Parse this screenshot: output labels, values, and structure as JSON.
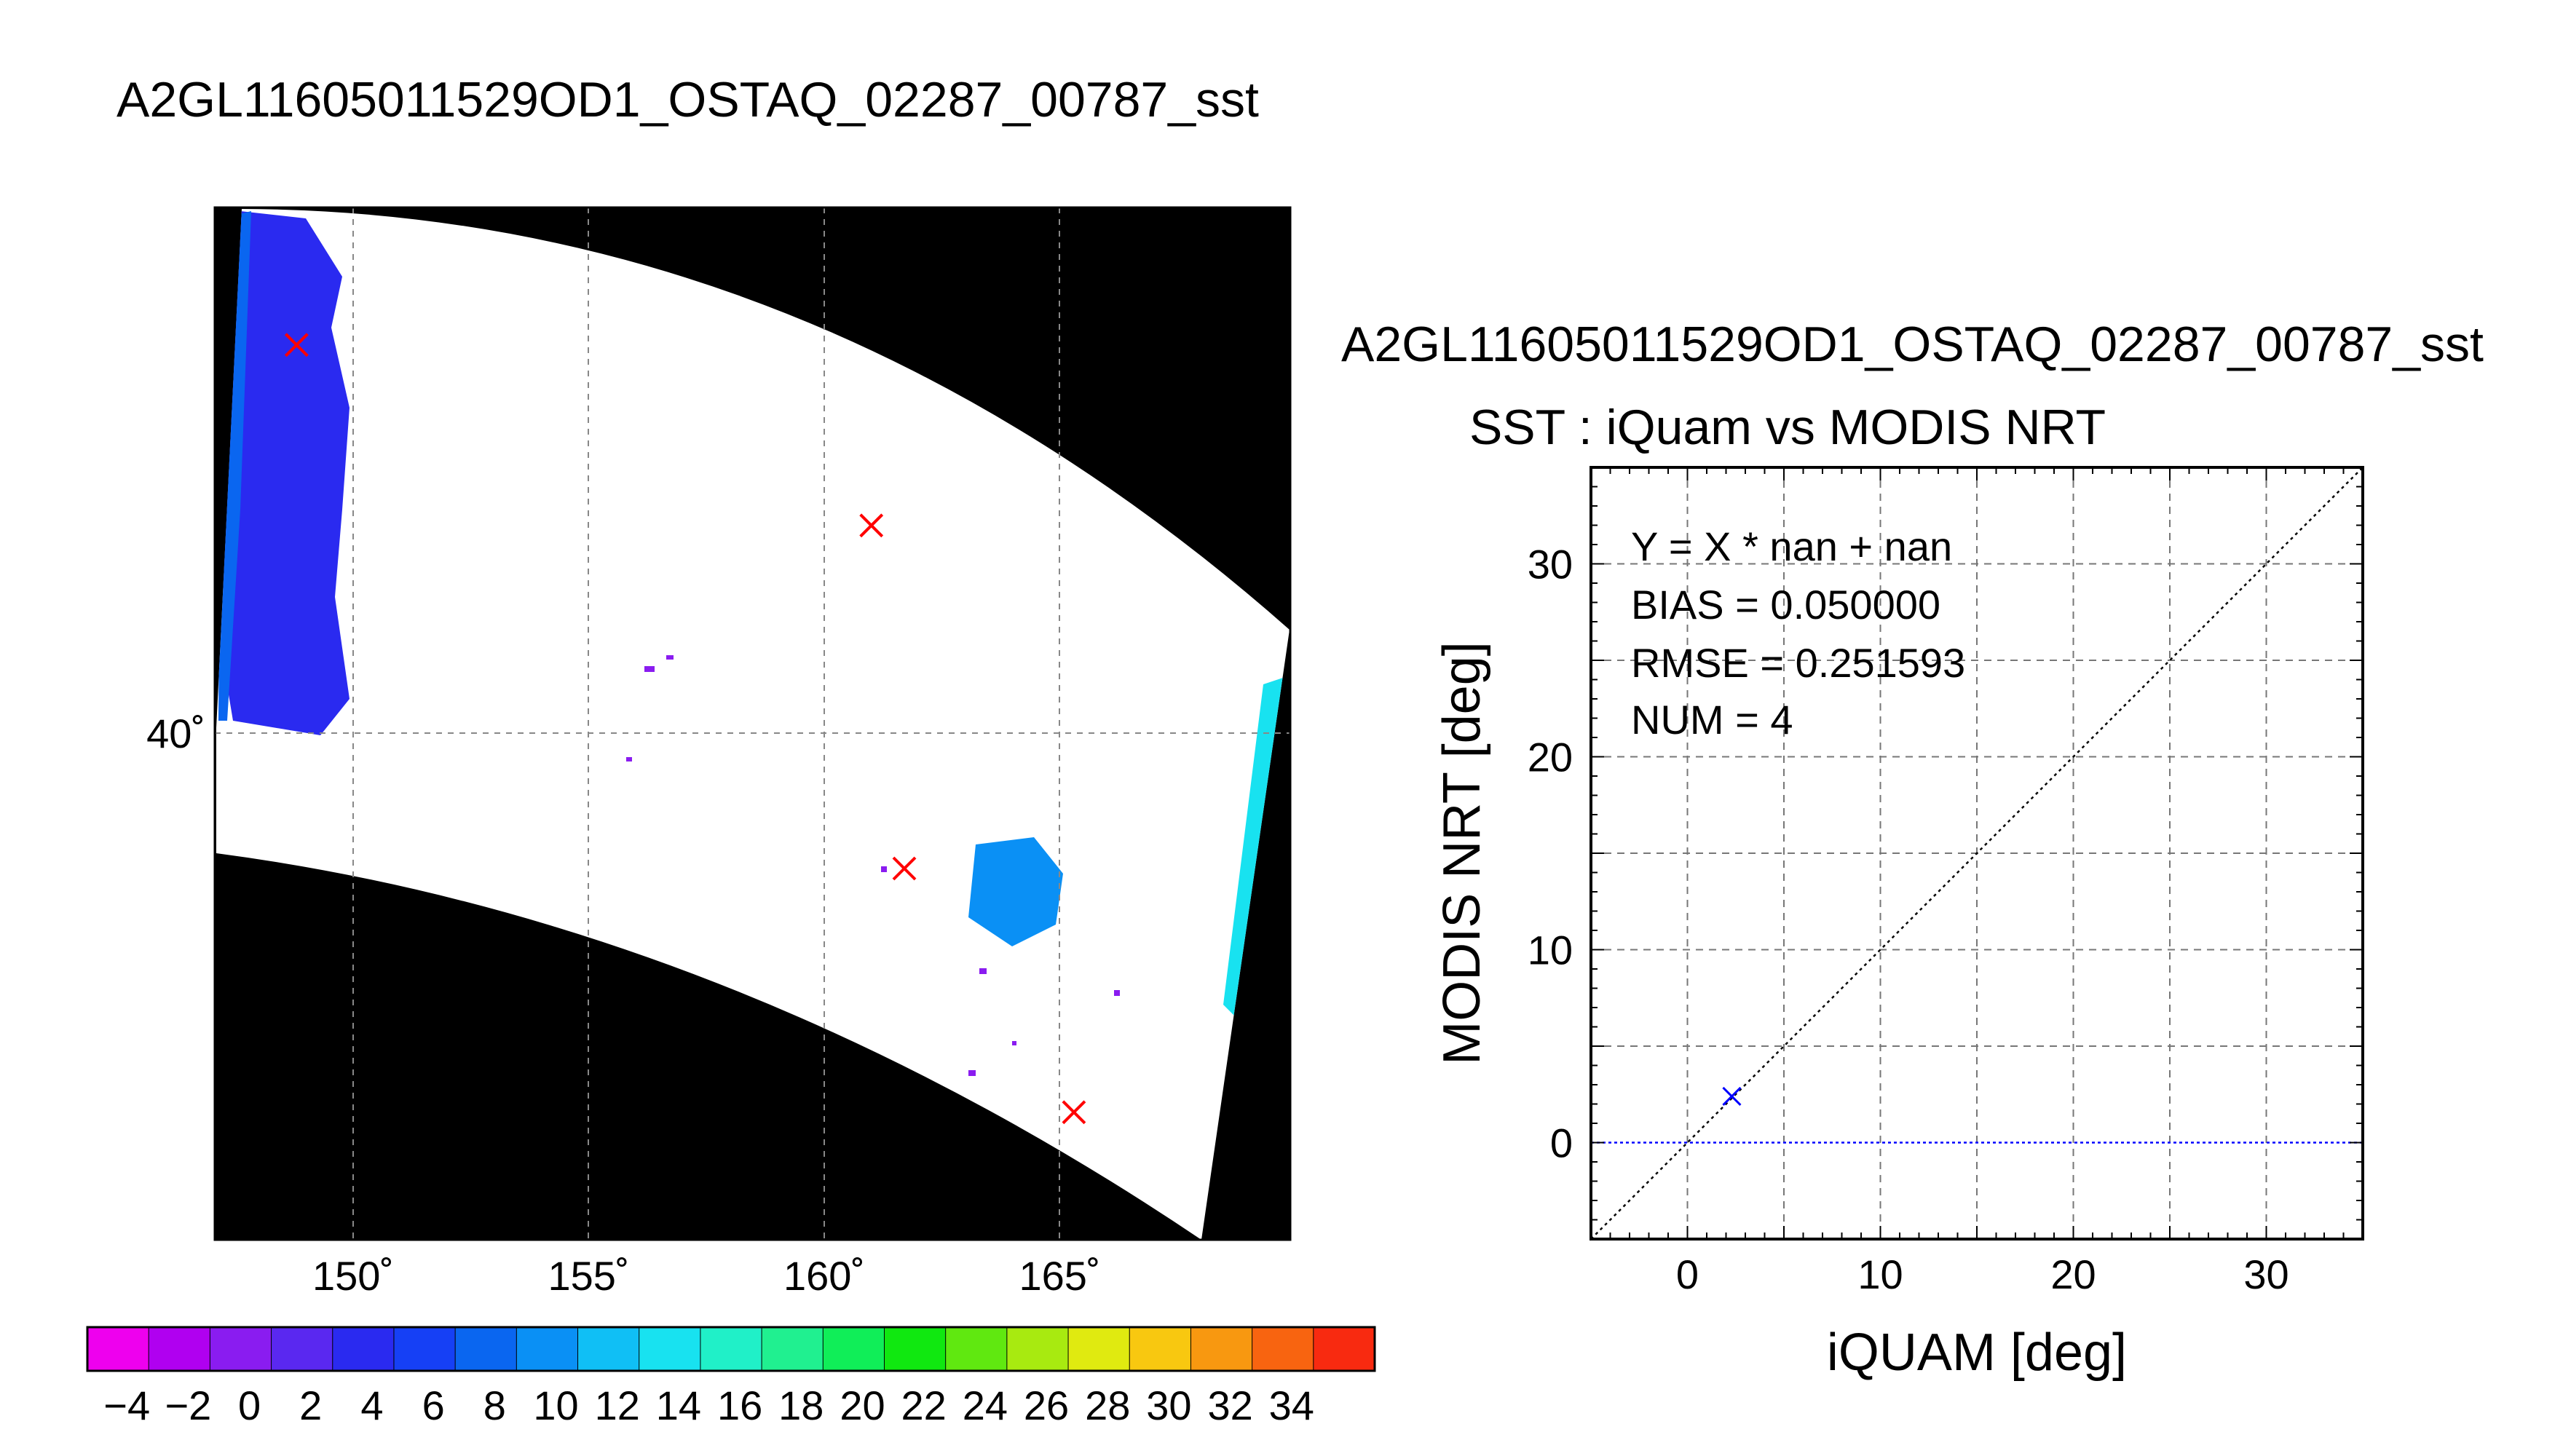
{
  "map_panel": {
    "title": "A2GL11605011529OD1_OSTAQ_02287_00787_sst",
    "lon_ticks": [
      {
        "lon": 150,
        "label": "150˚"
      },
      {
        "lon": 155,
        "label": "155˚"
      },
      {
        "lon": 160,
        "label": "160˚"
      },
      {
        "lon": 165,
        "label": "165˚"
      }
    ],
    "lat_ticks": [
      {
        "lat": 40,
        "label": "40˚"
      }
    ],
    "match_markers": [
      {
        "lon": 148.8,
        "lat": 48.6
      },
      {
        "lon": 161.0,
        "lat": 44.6
      },
      {
        "lon": 161.7,
        "lat": 37.0
      },
      {
        "lon": 165.3,
        "lat": 31.6
      }
    ],
    "colors": {
      "background_mask": "#000000",
      "no_data": "#ffffff",
      "marker": "#ff0000"
    }
  },
  "colorbar": {
    "labels": [
      "−4",
      "−2",
      "0",
      "2",
      "4",
      "6",
      "8",
      "10",
      "12",
      "14",
      "16",
      "18",
      "20",
      "22",
      "24",
      "26",
      "28",
      "30",
      "32",
      "34"
    ],
    "colors": [
      "#ee00ee",
      "#b000f0",
      "#8a1cf0",
      "#5a28f0",
      "#2a2af0",
      "#1640f5",
      "#0a66f0",
      "#0a90f5",
      "#10bff5",
      "#18e2f0",
      "#20f0c8",
      "#20f090",
      "#10ee58",
      "#10e810",
      "#60e810",
      "#a8ea10",
      "#e0ea10",
      "#f8c810",
      "#f89810",
      "#f86410",
      "#f82a10"
    ]
  },
  "scatter_panel": {
    "header": "A2GL11605011529OD1_OSTAQ_02287_00787_sst",
    "header_color": "#888888",
    "line_color": "#0000ff",
    "marker_color": "#0000ff",
    "chart_data": {
      "type": "scatter",
      "title": "SST : iQuam vs MODIS NRT",
      "xlabel": "iQUAM [deg]",
      "ylabel": "MODIS NRT [deg]",
      "xlim": [
        -5,
        35
      ],
      "ylim": [
        -5,
        35
      ],
      "xticks": [
        0,
        10,
        20,
        30
      ],
      "yticks": [
        0,
        10,
        20,
        30
      ],
      "grid": true,
      "points": [
        {
          "x": 2.3,
          "y": 2.4
        }
      ],
      "reference_lines": [
        {
          "name": "1:1",
          "style": "dotted"
        },
        {
          "name": "y = 0",
          "style": "dotted"
        }
      ],
      "stats": {
        "fit": "Y = X * nan + nan",
        "bias": "BIAS = 0.050000",
        "rmse": "RMSE = 0.251593",
        "num": "NUM = 4"
      }
    }
  }
}
